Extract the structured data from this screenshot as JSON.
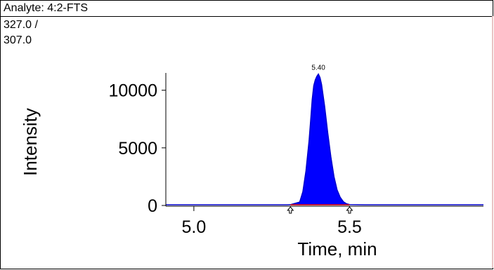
{
  "header": {
    "analyte": "Analyte: 4:2-FTS"
  },
  "transition": {
    "line1": "327.0 /",
    "line2": "307.0"
  },
  "chart_data": {
    "type": "area",
    "title": "",
    "xlabel": "Time, min",
    "ylabel": "Intensity",
    "xlim": [
      4.91,
      5.93
    ],
    "ylim": [
      0,
      11500
    ],
    "x_ticks": [
      5.0,
      5.5
    ],
    "x_tick_labels": [
      "5.0",
      "5.5"
    ],
    "y_ticks": [
      0,
      5000,
      10000
    ],
    "y_tick_labels": [
      "0",
      "5000",
      "10000"
    ],
    "peak_label": "5.40",
    "peak_rt": 5.4,
    "integration_start": 5.31,
    "integration_end": 5.5,
    "grid": false,
    "colors": {
      "fill": "#0000ff",
      "trace": "#0000cc",
      "baseline": "#e00000",
      "marker": "#000000"
    },
    "series": [
      {
        "x": [
          4.91,
          5.0,
          5.1,
          5.2,
          5.3,
          5.31,
          5.34,
          5.35,
          5.36,
          5.37,
          5.375,
          5.38,
          5.385,
          5.39,
          5.395,
          5.4,
          5.405,
          5.41,
          5.42,
          5.43,
          5.44,
          5.45,
          5.46,
          5.47,
          5.48,
          5.49,
          5.5,
          5.55,
          5.65,
          5.75,
          5.85,
          5.93
        ],
        "values": [
          60,
          60,
          60,
          60,
          60,
          70,
          300,
          1200,
          3000,
          5600,
          7400,
          9200,
          10400,
          10900,
          11200,
          11400,
          11100,
          10500,
          8600,
          6300,
          4200,
          2500,
          1350,
          700,
          330,
          150,
          80,
          60,
          60,
          60,
          60,
          60
        ]
      }
    ]
  }
}
